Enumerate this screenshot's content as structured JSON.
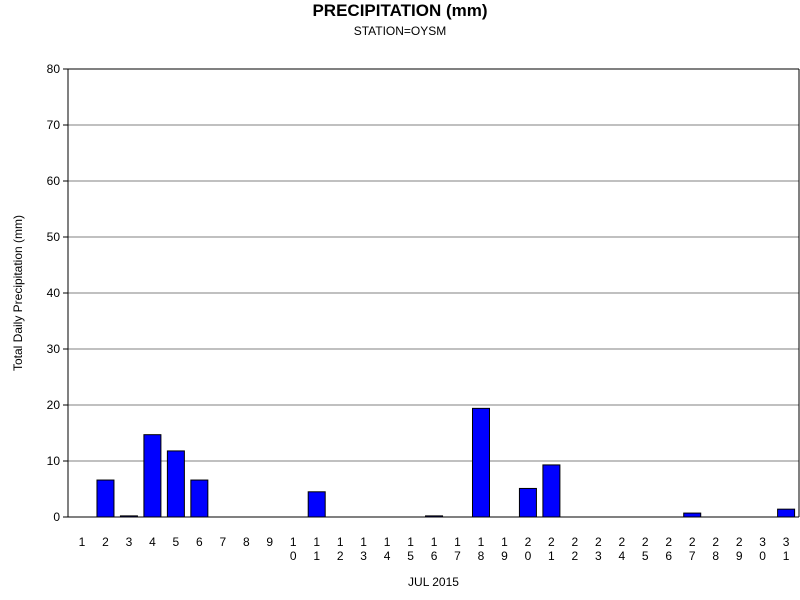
{
  "chart_data": {
    "type": "bar",
    "title": "PRECIPITATION (mm)",
    "subtitle": "STATION=OYSM",
    "xlabel": "JUL 2015",
    "ylabel": "Total Daily Precipitation (mm)",
    "ylim": [
      0,
      80
    ],
    "yticks": [
      0,
      10,
      20,
      30,
      40,
      50,
      60,
      70,
      80
    ],
    "grid": true,
    "bar_color": "#0000ff",
    "categories": [
      "1",
      "2",
      "3",
      "4",
      "5",
      "6",
      "7",
      "8",
      "9",
      "10",
      "11",
      "12",
      "13",
      "14",
      "15",
      "16",
      "17",
      "18",
      "19",
      "20",
      "21",
      "22",
      "23",
      "24",
      "25",
      "26",
      "27",
      "28",
      "29",
      "30",
      "31"
    ],
    "values": [
      0,
      6.6,
      0.2,
      14.7,
      11.8,
      6.6,
      0,
      0,
      0,
      0,
      4.5,
      0,
      0,
      0,
      0,
      0.2,
      0,
      19.4,
      0,
      5.1,
      9.3,
      0,
      0,
      0,
      0,
      0,
      0.7,
      0,
      0,
      0,
      1.4
    ]
  }
}
